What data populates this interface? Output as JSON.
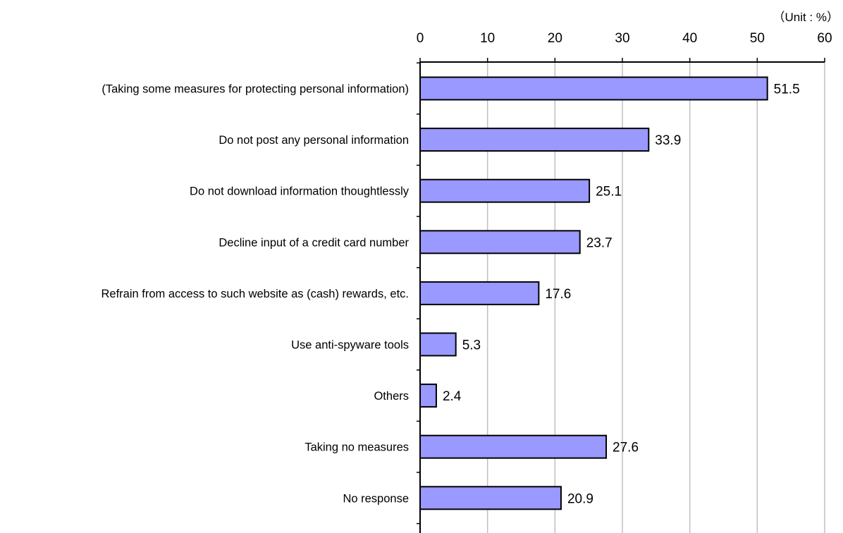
{
  "chart_data": {
    "type": "bar",
    "orientation": "horizontal",
    "unit_label": "（Unit : %）",
    "categories": [
      "(Taking some measures for protecting personal information)",
      "Do not post any personal information",
      "Do not download information thoughtlessly",
      "Decline input of a credit card number",
      "Refrain from access to such website as (cash) rewards, etc.",
      "Use anti-spyware tools",
      "Others",
      "Taking no measures",
      "No response"
    ],
    "values": [
      51.5,
      33.9,
      25.1,
      23.7,
      17.6,
      5.3,
      2.4,
      27.6,
      20.9
    ],
    "value_labels": [
      "51.5",
      "33.9",
      "25.1",
      "23.7",
      "17.6",
      "5.3",
      "2.4",
      "27.6",
      "20.9"
    ],
    "xlim": [
      0,
      60
    ],
    "xticks": [
      0,
      10,
      20,
      30,
      40,
      50,
      60
    ],
    "x_axis_position": "top",
    "grid": true,
    "legend": "none",
    "colors": {
      "bar_fill": "#9999ff",
      "bar_stroke": "#000000",
      "grid": "#c0c0c0"
    }
  }
}
